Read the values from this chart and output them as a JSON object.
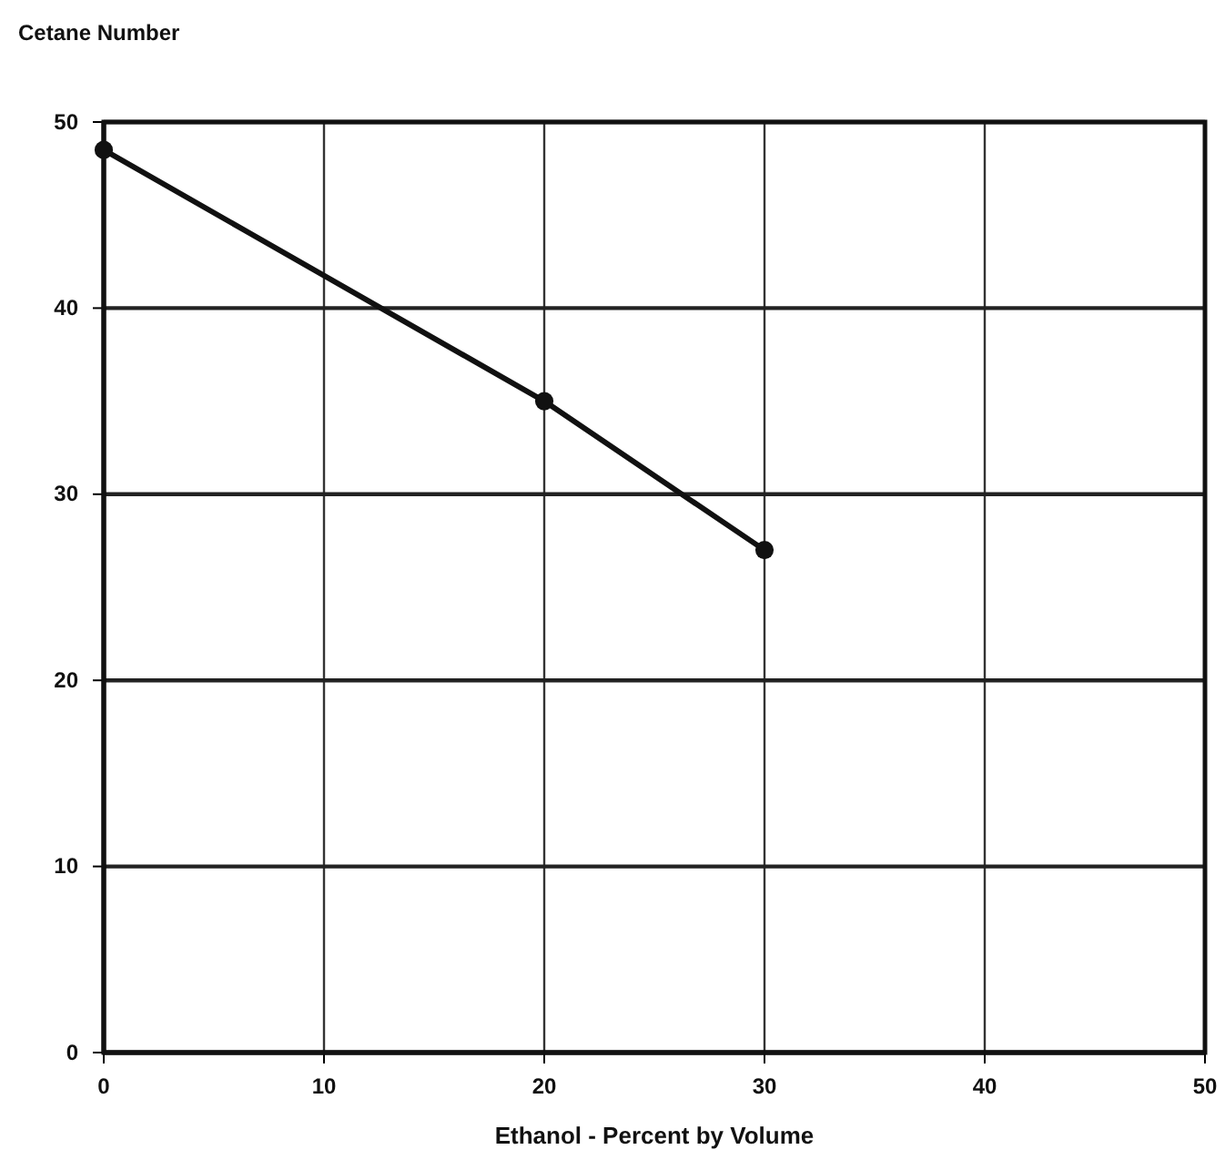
{
  "chart_data": {
    "type": "line",
    "ylabel": "Cetane Number",
    "xlabel": "Ethanol - Percent by Volume",
    "x": [
      0,
      20,
      30
    ],
    "values": [
      48.5,
      35,
      27
    ],
    "color": "#111111",
    "marker": "circle",
    "line_style": "solid",
    "xlim": [
      0,
      50
    ],
    "xticks": [
      0,
      10,
      20,
      30,
      40,
      50
    ],
    "ylim": [
      0,
      50
    ],
    "yticks": [
      0,
      10,
      20,
      30,
      40,
      50
    ],
    "grid": true
  }
}
